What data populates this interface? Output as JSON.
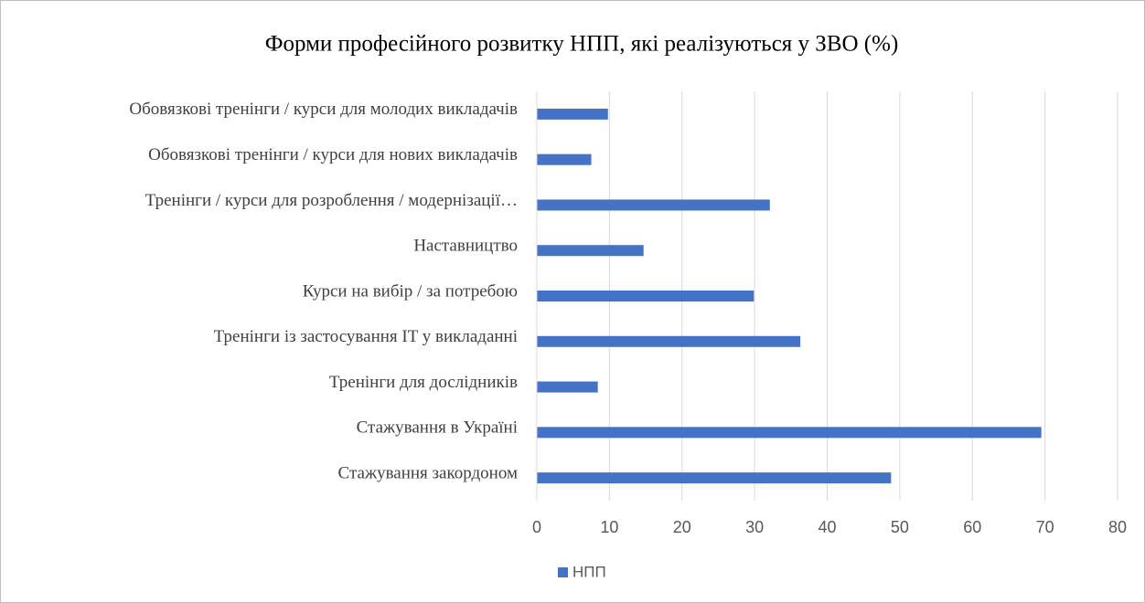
{
  "chart_data": {
    "type": "bar",
    "orientation": "horizontal",
    "title": "Форми професійного розвитку НПП, які реалізуються у ЗВО (%)",
    "categories": [
      "Обовязкові тренінги / курси для молодих викладачів",
      "Обовязкові тренінги / курси для нових викладачів",
      "Тренінги / курси для розроблення / модернізації…",
      "Наставництво",
      "Курси на вибір / за потребою",
      "Тренінги із застосування IT у викладанні",
      "Тренінги для дослідників",
      "Стажування в Україні",
      "Стажування закордоном"
    ],
    "series": [
      {
        "name": "НПП",
        "color": "#4472c4",
        "values": [
          9.8,
          7.5,
          32.1,
          14.7,
          29.9,
          36.3,
          8.4,
          69.5,
          48.8
        ]
      }
    ],
    "xlim": [
      0,
      80
    ],
    "xticks": [
      0,
      10,
      20,
      30,
      40,
      50,
      60,
      70,
      80
    ],
    "grid": true,
    "legend": "bottom"
  }
}
